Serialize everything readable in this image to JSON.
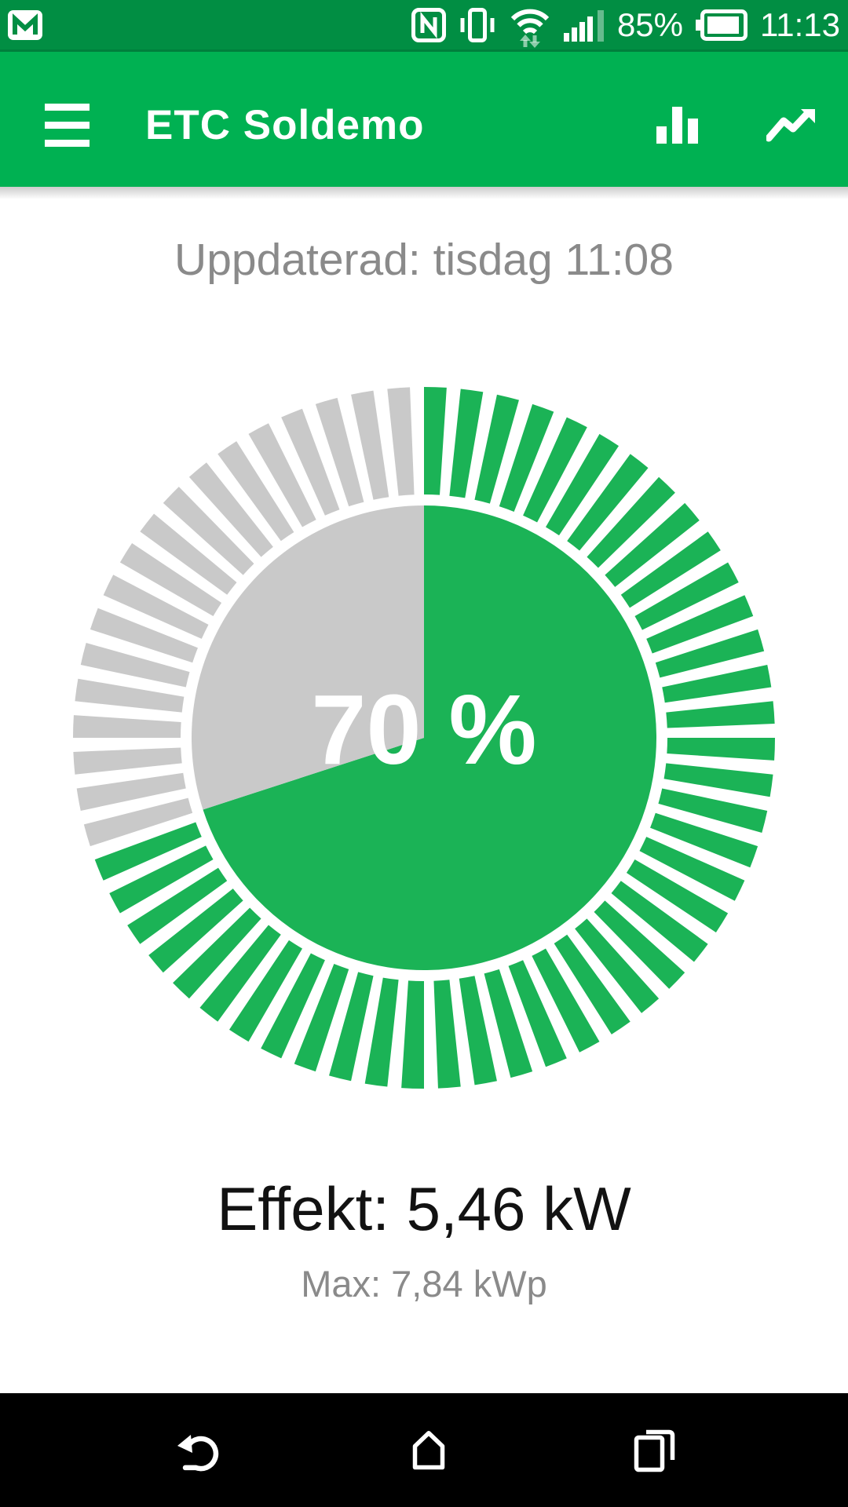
{
  "status_bar": {
    "time": "11:13",
    "battery_percent": "85%",
    "notification_icons": [
      "gmail-icon"
    ],
    "system_icons": [
      "nfc-icon",
      "vibrate-icon",
      "wifi-icon",
      "signal-strength-icon",
      "battery-icon"
    ]
  },
  "app_bar": {
    "title": "ETC Soldemo",
    "nav_icon": "hamburger-menu-icon",
    "action_icons": [
      "bar-chart-icon",
      "trending-up-icon"
    ]
  },
  "content": {
    "updated_text": "Uppdaterad: tisdag 11:08",
    "gauge_percent_label": "70 %",
    "effekt_text": "Effekt: 5,46 kW",
    "max_text": "Max: 7,84 kWp"
  },
  "gauge": {
    "percent": 70
  },
  "chart_data": {
    "type": "gauge",
    "value_percent": 70,
    "center_label": "70 %",
    "segments": [
      {
        "name": "filled",
        "percent": 70,
        "color": "#1bb356"
      },
      {
        "name": "remaining",
        "percent": 30,
        "color": "#c9c9c9"
      }
    ],
    "annotations": [
      "Effekt: 5,46 kW",
      "Max: 7,84 kWp"
    ],
    "style": "pie disc with surrounding ring of 60 radial spokes; filled sweep starts at 12 o'clock going clockwise"
  },
  "colors": {
    "status_bar_green": "#018e43",
    "app_bar_green": "#00b152",
    "gauge_green": "#1bb356",
    "gauge_gray": "#c9c9c9",
    "content_bg": "#ffffff",
    "nav_bar_black": "#000000",
    "text_gray": "#8a8a8a",
    "text_dark": "#121212"
  }
}
